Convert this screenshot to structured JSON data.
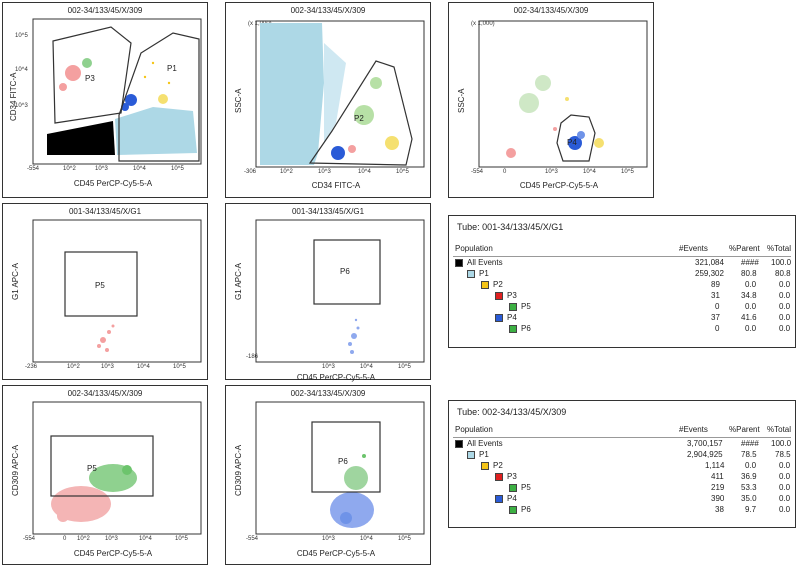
{
  "plots": [
    {
      "id": "p1",
      "title": "002-34/133/45/X/309",
      "xlabel": "CD45 PerCP-Cy5-5-A",
      "ylabel": "CD34 FITC-A",
      "ticks": [
        {
          "t": "10^5"
        },
        {
          "t": "10^4"
        },
        {
          "t": "10^3"
        },
        {
          "t": "-554"
        },
        {
          "t": "10^2"
        },
        {
          "t": "10^3"
        },
        {
          "t": "10^4"
        },
        {
          "t": "10^5"
        }
      ],
      "gates": [
        {
          "name": "P3"
        },
        {
          "name": "P1"
        }
      ]
    },
    {
      "id": "p2",
      "title": "002-34/133/45/X/309",
      "xlabel": "CD34 FITC-A",
      "ylabel": "SSC-A",
      "unit": "(x 1,000)",
      "ticks": [
        {
          "t": "-306"
        },
        {
          "t": "10^2"
        },
        {
          "t": "10^3"
        },
        {
          "t": "10^4"
        },
        {
          "t": "10^5"
        }
      ],
      "gates": [
        {
          "name": "P2"
        }
      ]
    },
    {
      "id": "p3",
      "title": "002-34/133/45/X/309",
      "xlabel": "CD45 PerCP-Cy5-5-A",
      "ylabel": "SSC-A",
      "unit": "(x 1,000)",
      "ticks": [
        {
          "t": "-554"
        },
        {
          "t": "0"
        },
        {
          "t": "10^3"
        },
        {
          "t": "10^4"
        },
        {
          "t": "10^5"
        }
      ],
      "gates": [
        {
          "name": "P4"
        }
      ]
    },
    {
      "id": "p4",
      "title": "001-34/133/45/X/G1",
      "xlabel": "CD45 PerCP-Cy5-5-A",
      "ylabel": "G1 APC-A",
      "ticks": [
        {
          "t": "-236"
        },
        {
          "t": "10^2"
        },
        {
          "t": "10^3"
        },
        {
          "t": "10^4"
        },
        {
          "t": "10^5"
        }
      ],
      "gates": [
        {
          "name": "P5"
        }
      ]
    },
    {
      "id": "p5",
      "title": "001-34/133/45/X/G1",
      "xlabel": "CD45 PerCP-Cy5-5-A",
      "ylabel": "G1 APC-A",
      "ticks": [
        {
          "t": "-186"
        },
        {
          "t": "10^3"
        },
        {
          "t": "10^4"
        },
        {
          "t": "10^5"
        }
      ],
      "gates": [
        {
          "name": "P6"
        }
      ]
    },
    {
      "id": "p6",
      "title": "002-34/133/45/X/309",
      "xlabel": "CD45 PerCP-Cy5-5-A",
      "ylabel": "CD309 APC-A",
      "ticks": [
        {
          "t": "-554"
        },
        {
          "t": "0"
        },
        {
          "t": "10^2"
        },
        {
          "t": "10^3"
        },
        {
          "t": "10^4"
        },
        {
          "t": "10^5"
        }
      ],
      "gates": [
        {
          "name": "P5"
        }
      ]
    },
    {
      "id": "p7",
      "title": "002-34/133/45/X/309",
      "xlabel": "CD45 PerCP-Cy5-5-A",
      "ylabel": "CD309 APC-A",
      "ticks": [
        {
          "t": "-554"
        },
        {
          "t": "10^3"
        },
        {
          "t": "10^4"
        },
        {
          "t": "10^5"
        }
      ],
      "gates": [
        {
          "name": "P6"
        }
      ]
    }
  ],
  "tables": [
    {
      "tube": "Tube:   001-34/133/45/X/G1",
      "headers": {
        "population": "Population",
        "events": "#Events",
        "parent": "%Parent",
        "total": "%Total"
      },
      "rows": [
        {
          "name": "All Events",
          "events": "321,084",
          "parent": "####",
          "total": "100.0",
          "color": "#000000",
          "level": 0
        },
        {
          "name": "P1",
          "events": "259,302",
          "parent": "80.8",
          "total": "80.8",
          "color": "#add8e6",
          "level": 1
        },
        {
          "name": "P2",
          "events": "89",
          "parent": "0.0",
          "total": "0.0",
          "color": "#f5c518",
          "level": 2
        },
        {
          "name": "P3",
          "events": "31",
          "parent": "34.8",
          "total": "0.0",
          "color": "#e02020",
          "level": 3
        },
        {
          "name": "P5",
          "events": "0",
          "parent": "0.0",
          "total": "0.0",
          "color": "#3cb043",
          "level": 4
        },
        {
          "name": "P4",
          "events": "37",
          "parent": "41.6",
          "total": "0.0",
          "color": "#2a5bd7",
          "level": 3
        },
        {
          "name": "P6",
          "events": "0",
          "parent": "0.0",
          "total": "0.0",
          "color": "#3cb043",
          "level": 4
        }
      ]
    },
    {
      "tube": "Tube:   002-34/133/45/X/309",
      "headers": {
        "population": "Population",
        "events": "#Events",
        "parent": "%Parent",
        "total": "%Total"
      },
      "rows": [
        {
          "name": "All Events",
          "events": "3,700,157",
          "parent": "####",
          "total": "100.0",
          "color": "#000000",
          "level": 0
        },
        {
          "name": "P1",
          "events": "2,904,925",
          "parent": "78.5",
          "total": "78.5",
          "color": "#add8e6",
          "level": 1
        },
        {
          "name": "P2",
          "events": "1,114",
          "parent": "0.0",
          "total": "0.0",
          "color": "#f5c518",
          "level": 2
        },
        {
          "name": "P3",
          "events": "411",
          "parent": "36.9",
          "total": "0.0",
          "color": "#e02020",
          "level": 3
        },
        {
          "name": "P5",
          "events": "219",
          "parent": "53.3",
          "total": "0.0",
          "color": "#3cb043",
          "level": 4
        },
        {
          "name": "P4",
          "events": "390",
          "parent": "35.0",
          "total": "0.0",
          "color": "#2a5bd7",
          "level": 3
        },
        {
          "name": "P6",
          "events": "38",
          "parent": "9.7",
          "total": "0.0",
          "color": "#3cb043",
          "level": 4
        }
      ]
    }
  ],
  "colors": {
    "all": "#000000",
    "p1": "#add8e6",
    "p2": "#f5c518",
    "p3": "#e02020",
    "p4": "#2a5bd7",
    "p5": "#3cb043",
    "p6": "#3cb043"
  },
  "chart_data": [
    {
      "type": "table",
      "title": "Tube:   001-34/133/45/X/G1",
      "columns": [
        "Population",
        "#Events",
        "%Parent",
        "%Total"
      ],
      "rows": [
        [
          "All Events",
          "321,084",
          "####",
          "100.0"
        ],
        [
          "P1",
          "259,302",
          "80.8",
          "80.8"
        ],
        [
          "P2",
          "89",
          "0.0",
          "0.0"
        ],
        [
          "P3",
          "31",
          "34.8",
          "0.0"
        ],
        [
          "P5",
          "0",
          "0.0",
          "0.0"
        ],
        [
          "P4",
          "37",
          "41.6",
          "0.0"
        ],
        [
          "P6",
          "0",
          "0.0",
          "0.0"
        ]
      ]
    },
    {
      "type": "table",
      "title": "Tube:   002-34/133/45/X/309",
      "columns": [
        "Population",
        "#Events",
        "%Parent",
        "%Total"
      ],
      "rows": [
        [
          "All Events",
          "3,700,157",
          "####",
          "100.0"
        ],
        [
          "P1",
          "2,904,925",
          "78.5",
          "78.5"
        ],
        [
          "P2",
          "1,114",
          "0.0",
          "0.0"
        ],
        [
          "P3",
          "411",
          "36.9",
          "0.0"
        ],
        [
          "P5",
          "219",
          "53.3",
          "0.0"
        ],
        [
          "P4",
          "390",
          "35.0",
          "0.0"
        ],
        [
          "P6",
          "38",
          "9.7",
          "0.0"
        ]
      ]
    },
    {
      "type": "scatter",
      "title": "002-34/133/45/X/309",
      "xlabel": "CD45 PerCP-Cy5-5-A",
      "ylabel": "CD34 FITC-A",
      "gates": [
        "P3",
        "P1"
      ]
    },
    {
      "type": "scatter",
      "title": "002-34/133/45/X/309",
      "xlabel": "CD34 FITC-A",
      "ylabel": "SSC-A",
      "gates": [
        "P2"
      ]
    },
    {
      "type": "scatter",
      "title": "002-34/133/45/X/309",
      "xlabel": "CD45 PerCP-Cy5-5-A",
      "ylabel": "SSC-A",
      "gates": [
        "P4"
      ]
    },
    {
      "type": "scatter",
      "title": "001-34/133/45/X/G1",
      "xlabel": "CD45 PerCP-Cy5-5-A",
      "ylabel": "G1 APC-A",
      "gates": [
        "P5"
      ]
    },
    {
      "type": "scatter",
      "title": "001-34/133/45/X/G1",
      "xlabel": "CD45 PerCP-Cy5-5-A",
      "ylabel": "G1 APC-A",
      "gates": [
        "P6"
      ]
    },
    {
      "type": "scatter",
      "title": "002-34/133/45/X/309",
      "xlabel": "CD45 PerCP-Cy5-5-A",
      "ylabel": "CD309 APC-A",
      "gates": [
        "P5"
      ]
    },
    {
      "type": "scatter",
      "title": "002-34/133/45/X/309",
      "xlabel": "CD45 PerCP-Cy5-5-A",
      "ylabel": "CD309 APC-A",
      "gates": [
        "P6"
      ]
    }
  ]
}
